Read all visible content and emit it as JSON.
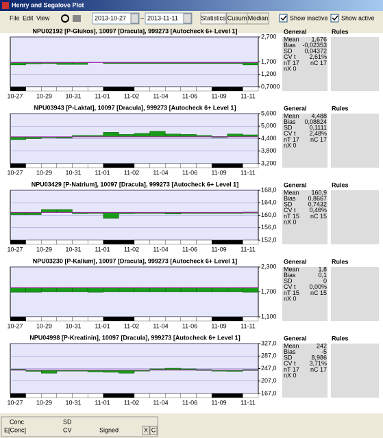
{
  "window": {
    "title": "Henry and Segalove Plot"
  },
  "menu": [
    "File",
    "Edit",
    "View"
  ],
  "toolbar": {
    "date_from": "2013-10-27",
    "separator": "–",
    "date_to": "2013-11-11",
    "buttons": [
      "Statistics",
      "Cusum",
      "Median"
    ],
    "checkboxes": [
      "Show inactive",
      "Show active"
    ]
  },
  "x_labels": [
    "10-27",
    "10-29",
    "10-31",
    "11-01",
    "11-02",
    "11-04",
    "11-06",
    "11-09",
    "11-11"
  ],
  "panels": [
    {
      "title": "NPU02192 [P-Glukos], 10097 [Dracula], 999273 [Autocheck 6+ Level 1]",
      "ylim": [
        0.7,
        2.7
      ],
      "yticks": [
        {
          "value": 2.7,
          "label": "2,700"
        },
        {
          "value": 1.7,
          "label": "1,700"
        },
        {
          "value": 1.2,
          "label": "1,200"
        },
        {
          "value": 0.7,
          "label": "0,7000"
        }
      ],
      "target": 1.676,
      "values": [
        1.58,
        1.62,
        1.66,
        1.6,
        1.6,
        null,
        1.66,
        1.66,
        1.67,
        1.67,
        1.67,
        1.67,
        1.67,
        1.67,
        1.67,
        1.58
      ],
      "general_header": "General",
      "rules_header": "Rules",
      "stats": [
        [
          "Mean",
          "1,676"
        ],
        [
          "Bias",
          "-0,02353"
        ],
        [
          "SD",
          "0,04372"
        ],
        [
          "CV t",
          "2,61%"
        ],
        [
          "nT 17",
          "nC 17"
        ],
        [
          "nX 0",
          ""
        ]
      ]
    },
    {
      "title": "NPU03943 [P-Laktat], 10097 [Dracula], 999273 [Autocheck 6+ Level 1]",
      "ylim": [
        3.2,
        5.6
      ],
      "yticks": [
        {
          "value": 5.6,
          "label": "5,600"
        },
        {
          "value": 5,
          "label": "5,000"
        },
        {
          "value": 4.4,
          "label": "4,400"
        },
        {
          "value": 3.8,
          "label": "3,800"
        },
        {
          "value": 3.2,
          "label": "3,200"
        }
      ],
      "target": 4.488,
      "values": [
        4.35,
        4.4,
        4.45,
        4.42,
        4.55,
        4.55,
        4.7,
        4.6,
        4.65,
        4.75,
        4.62,
        4.6,
        4.55,
        4.5,
        4.62,
        4.58
      ],
      "general_header": "General",
      "rules_header": "Rules",
      "stats": [
        [
          "Mean",
          "4,488"
        ],
        [
          "Bias",
          "0,08824"
        ],
        [
          "SD",
          "0,1111"
        ],
        [
          "CV t",
          "2,48%"
        ],
        [
          "nT 17",
          "nC 17"
        ],
        [
          "nX 0",
          ""
        ]
      ]
    },
    {
      "title": "NPU03429 [P-Natrium], 10097 [Dracula], 999273 [Autocheck 6+ Level 1]",
      "ylim": [
        152,
        168
      ],
      "yticks": [
        {
          "value": 168,
          "label": "168,0"
        },
        {
          "value": 164,
          "label": "164,0"
        },
        {
          "value": 160,
          "label": "160,0"
        },
        {
          "value": 156,
          "label": "156,0"
        },
        {
          "value": 152,
          "label": "152,0"
        }
      ],
      "target": 160.9,
      "values": [
        160.2,
        160.2,
        161.8,
        161.8,
        160.5,
        160.6,
        159.0,
        160.5,
        160.6,
        160.6,
        160.4,
        160.6,
        160.6,
        160.6,
        160.6,
        161
      ],
      "general_header": "General",
      "rules_header": "Rules",
      "stats": [
        [
          "Mean",
          "160,9"
        ],
        [
          "Bias",
          "0,8667"
        ],
        [
          "SD",
          "0,7432"
        ],
        [
          "CV t",
          "0,46%"
        ],
        [
          "nT 15",
          "nC 15"
        ],
        [
          "nX 0",
          ""
        ]
      ]
    },
    {
      "title": "NPU03230 [P-Kalium], 10097 [Dracula], 999273 [Autocheck 6+ Level 1]",
      "ylim": [
        1.1,
        2.3
      ],
      "yticks": [
        {
          "value": 2.3,
          "label": "2,300"
        },
        {
          "value": 1.7,
          "label": "1,700"
        },
        {
          "value": 1.1,
          "label": "1,100"
        }
      ],
      "target": 1.8,
      "values": [
        1.69,
        1.69,
        1.7,
        1.7,
        1.7,
        1.69,
        1.7,
        1.7,
        1.7,
        1.7,
        1.7,
        1.7,
        1.7,
        1.7,
        1.7,
        1.69
      ],
      "general_header": "General",
      "rules_header": "Rules",
      "stats": [
        [
          "Mean",
          "1,8"
        ],
        [
          "Bias",
          "0,1"
        ],
        [
          "SD",
          "0"
        ],
        [
          "CV t",
          "0,00%"
        ],
        [
          "nT 15",
          "nC 15"
        ],
        [
          "nX 0",
          ""
        ]
      ]
    },
    {
      "title": "NPU04998 [P-Kreatinin], 10097 [Dracula], 999273 [Autocheck 6+ Level 1]",
      "ylim": [
        167,
        327
      ],
      "yticks": [
        {
          "value": 327,
          "label": "327,0"
        },
        {
          "value": 287,
          "label": "287,0"
        },
        {
          "value": 247,
          "label": "247,0"
        },
        {
          "value": 207,
          "label": "207,0"
        },
        {
          "value": 167,
          "label": "167,0"
        }
      ],
      "target": 242,
      "values": [
        245,
        238,
        232,
        240,
        242,
        236,
        235,
        232,
        240,
        246,
        248,
        246,
        244,
        240,
        238,
        244
      ],
      "general_header": "General",
      "rules_header": "Rules",
      "stats": [
        [
          "Mean",
          "242"
        ],
        [
          "Bias",
          "-5"
        ],
        [
          "SD",
          "8,986"
        ],
        [
          "CV t",
          "3,71%"
        ],
        [
          "nT 17",
          "nC 17"
        ],
        [
          "nX 0",
          ""
        ]
      ]
    }
  ],
  "status": {
    "labels": [
      "Conc",
      "SD",
      "E[Conc]",
      "CV",
      "Signed"
    ],
    "buttons": [
      "X",
      "C"
    ]
  }
}
